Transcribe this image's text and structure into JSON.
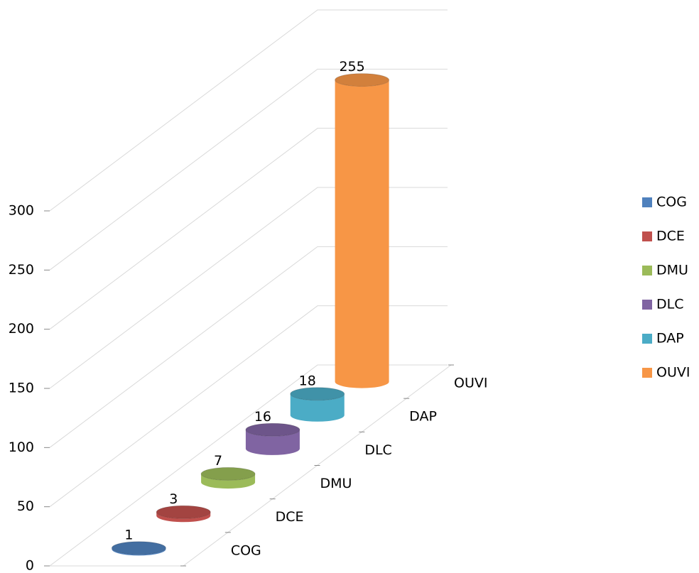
{
  "chart_data": {
    "type": "bar3d",
    "categories": [
      "COG",
      "DCE",
      "DMU",
      "DLC",
      "DAP",
      "OUVI"
    ],
    "values": [
      1,
      3,
      7,
      16,
      18,
      255
    ],
    "colors": [
      "#4f81bd",
      "#c0504d",
      "#9bbb59",
      "#8064a2",
      "#4bacc6",
      "#f79646"
    ],
    "ylim": [
      0,
      300
    ],
    "yticks": [
      0,
      50,
      100,
      150,
      200,
      250,
      300
    ],
    "grid": true,
    "legend": "right"
  }
}
